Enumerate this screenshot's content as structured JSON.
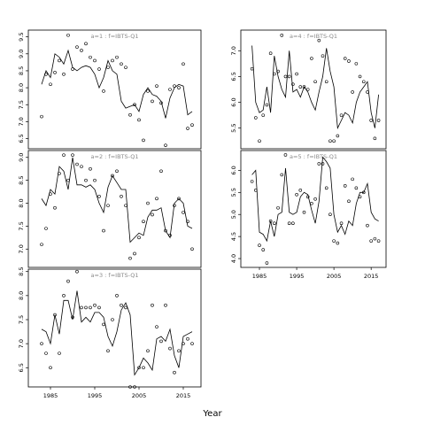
{
  "figure": {
    "xlabel": "Year"
  },
  "chart_data": [
    {
      "type": "line",
      "title": "a=1 : f=IBTS-Q1",
      "xlim": [
        1980,
        2019
      ],
      "ylim": [
        6.2,
        9.7
      ],
      "xticks": [],
      "yticks": [
        6.5,
        7.0,
        7.5,
        8.0,
        8.5,
        9.0,
        9.5
      ],
      "series": [
        {
          "kind": "fitted-line",
          "x": [
            1983,
            1984,
            1985,
            1986,
            1987,
            1988,
            1989,
            1990,
            1991,
            1992,
            1993,
            1994,
            1995,
            1996,
            1997,
            1998,
            1999,
            2000,
            2001,
            2002,
            2003,
            2004,
            2005,
            2006,
            2007,
            2008,
            2009,
            2010,
            2011,
            2012,
            2013,
            2014,
            2015,
            2016,
            2017
          ],
          "y": [
            8.1,
            8.5,
            8.3,
            9.0,
            8.9,
            8.7,
            9.1,
            8.6,
            8.5,
            8.6,
            8.65,
            8.6,
            8.4,
            8.0,
            8.3,
            8.8,
            8.5,
            8.4,
            7.6,
            7.4,
            7.45,
            7.5,
            7.3,
            7.8,
            8.0,
            7.8,
            7.75,
            7.6,
            7.1,
            7.7,
            8.0,
            8.1,
            8.05,
            7.2,
            7.3
          ]
        },
        {
          "kind": "observations",
          "x": [
            1983,
            1984,
            1985,
            1986,
            1987,
            1988,
            1989,
            1990,
            1991,
            1992,
            1993,
            1994,
            1995,
            1996,
            1997,
            1998,
            1999,
            2000,
            2001,
            2002,
            2003,
            2004,
            2005,
            2006,
            2007,
            2008,
            2009,
            2010,
            2011,
            2012,
            2013,
            2014,
            2015,
            2016,
            2017
          ],
          "y": [
            7.15,
            8.4,
            8.1,
            8.45,
            8.8,
            8.4,
            9.55,
            8.55,
            9.2,
            9.1,
            9.3,
            8.9,
            8.8,
            8.55,
            7.9,
            8.6,
            8.8,
            8.9,
            8.7,
            8.6,
            7.2,
            7.5,
            7.05,
            6.45,
            7.9,
            7.6,
            8.05,
            7.55,
            6.3,
            7.95,
            8.05,
            8.0,
            8.7,
            6.8,
            6.9
          ]
        }
      ]
    },
    {
      "type": "line",
      "title": "a=2 : f=IBTS-Q1",
      "xlim": [
        1980,
        2019
      ],
      "ylim": [
        6.6,
        9.15
      ],
      "xticks": [],
      "yticks": [
        7.0,
        7.5,
        8.0,
        8.5,
        9.0
      ],
      "series": [
        {
          "kind": "fitted-line",
          "x": [
            1983,
            1984,
            1985,
            1986,
            1987,
            1988,
            1989,
            1990,
            1991,
            1992,
            1993,
            1994,
            1995,
            1996,
            1997,
            1998,
            1999,
            2000,
            2001,
            2002,
            2003,
            2004,
            2005,
            2006,
            2007,
            2008,
            2009,
            2010,
            2011,
            2012,
            2013,
            2014,
            2015,
            2016,
            2017
          ],
          "y": [
            8.1,
            7.95,
            8.3,
            8.2,
            8.8,
            8.7,
            8.3,
            9.0,
            8.4,
            8.4,
            8.35,
            8.4,
            8.3,
            8.0,
            7.8,
            8.35,
            8.6,
            8.45,
            8.3,
            8.3,
            7.15,
            7.25,
            7.35,
            7.3,
            7.7,
            7.85,
            7.85,
            7.9,
            7.4,
            7.25,
            8.0,
            8.1,
            8.0,
            7.5,
            7.45
          ]
        },
        {
          "kind": "observations",
          "x": [
            1983,
            1984,
            1985,
            1986,
            1987,
            1988,
            1989,
            1990,
            1991,
            1992,
            1993,
            1994,
            1995,
            1996,
            1997,
            1998,
            1999,
            2000,
            2001,
            2002,
            2003,
            2004,
            2005,
            2006,
            2007,
            2008,
            2009,
            2010,
            2011,
            2012,
            2013,
            2014,
            2015,
            2016,
            2017
          ],
          "y": [
            7.1,
            7.45,
            8.2,
            7.9,
            8.65,
            9.05,
            8.5,
            9.05,
            8.85,
            8.8,
            8.5,
            8.75,
            8.5,
            8.15,
            7.4,
            7.95,
            8.6,
            8.7,
            8.15,
            7.95,
            6.8,
            6.9,
            7.25,
            7.6,
            8.0,
            7.75,
            8.1,
            8.7,
            7.4,
            7.3,
            7.95,
            8.1,
            7.8,
            7.6,
            7.0
          ]
        }
      ]
    },
    {
      "type": "line",
      "title": "a=3 : f=IBTS-Q1",
      "xlim": [
        1980,
        2019
      ],
      "ylim": [
        6.1,
        8.55
      ],
      "xticks": [
        1985,
        1995,
        2005,
        2015
      ],
      "yticks": [
        6.5,
        7.0,
        7.5,
        8.0,
        8.5
      ],
      "series": [
        {
          "kind": "fitted-line",
          "x": [
            1983,
            1984,
            1985,
            1986,
            1987,
            1988,
            1989,
            1990,
            1991,
            1992,
            1993,
            1994,
            1995,
            1996,
            1997,
            1998,
            1999,
            2000,
            2001,
            2002,
            2003,
            2004,
            2005,
            2006,
            2007,
            2008,
            2009,
            2010,
            2011,
            2012,
            2013,
            2014,
            2015,
            2016,
            2017
          ],
          "y": [
            7.3,
            7.25,
            7.0,
            7.6,
            7.2,
            7.9,
            7.9,
            7.5,
            8.1,
            7.45,
            7.55,
            7.45,
            7.65,
            7.65,
            7.55,
            7.15,
            6.95,
            7.25,
            7.7,
            7.85,
            7.6,
            6.35,
            6.5,
            6.7,
            6.6,
            6.45,
            7.1,
            7.15,
            7.05,
            7.3,
            6.75,
            6.5,
            7.15,
            7.2,
            7.25
          ]
        },
        {
          "kind": "observations",
          "x": [
            1983,
            1984,
            1985,
            1986,
            1987,
            1988,
            1989,
            1990,
            1991,
            1992,
            1993,
            1994,
            1995,
            1996,
            1997,
            1998,
            1999,
            2000,
            2001,
            2002,
            2003,
            2004,
            2005,
            2006,
            2007,
            2008,
            2009,
            2010,
            2011,
            2012,
            2013,
            2014,
            2015,
            2016,
            2017
          ],
          "y": [
            7.0,
            6.8,
            6.5,
            7.6,
            6.8,
            8.0,
            8.3,
            7.55,
            8.5,
            7.75,
            7.75,
            7.75,
            7.8,
            7.75,
            7.4,
            6.85,
            7.5,
            8.0,
            7.8,
            7.75,
            6.1,
            6.1,
            6.5,
            6.5,
            6.85,
            7.8,
            7.35,
            7.05,
            7.8,
            6.9,
            6.4,
            6.85,
            7.0,
            7.1,
            7.0
          ]
        }
      ]
    },
    {
      "type": "line",
      "title": "a=4 : f=IBTS-Q1",
      "xlim": [
        1980,
        2019
      ],
      "ylim": [
        5.1,
        7.4
      ],
      "xticks": [],
      "yticks": [
        5.5,
        6.0,
        6.5,
        7.0
      ],
      "series": [
        {
          "kind": "fitted-line",
          "x": [
            1983,
            1984,
            1985,
            1986,
            1987,
            1988,
            1989,
            1990,
            1991,
            1992,
            1993,
            1994,
            1995,
            1996,
            1997,
            1998,
            1999,
            2000,
            2001,
            2002,
            2003,
            2004,
            2005,
            2006,
            2007,
            2008,
            2009,
            2010,
            2011,
            2012,
            2013,
            2014,
            2015,
            2016,
            2017
          ],
          "y": [
            7.1,
            6.0,
            5.8,
            5.85,
            6.3,
            5.8,
            6.9,
            6.5,
            6.25,
            6.1,
            7.0,
            6.2,
            6.25,
            6.1,
            6.3,
            6.2,
            6.0,
            5.85,
            6.2,
            6.5,
            7.05,
            6.6,
            6.3,
            5.5,
            5.65,
            5.8,
            5.75,
            5.6,
            6.0,
            6.2,
            6.3,
            6.4,
            5.8,
            5.5,
            6.15
          ]
        },
        {
          "kind": "observations",
          "x": [
            1983,
            1984,
            1985,
            1986,
            1987,
            1988,
            1989,
            1990,
            1991,
            1992,
            1993,
            1994,
            1995,
            1996,
            1997,
            1998,
            1999,
            2000,
            2001,
            2002,
            2003,
            2004,
            2005,
            2006,
            2007,
            2008,
            2009,
            2010,
            2011,
            2012,
            2013,
            2014,
            2015,
            2016,
            2017
          ],
          "y": [
            6.65,
            5.7,
            5.25,
            5.75,
            5.95,
            6.95,
            6.55,
            6.6,
            7.3,
            6.5,
            6.5,
            6.35,
            6.55,
            6.3,
            6.3,
            6.25,
            6.85,
            6.4,
            7.2,
            6.9,
            6.4,
            5.25,
            5.25,
            5.35,
            5.75,
            6.85,
            6.8,
            6.2,
            6.75,
            6.5,
            6.4,
            6.2,
            5.65,
            5.3,
            5.65
          ]
        }
      ]
    },
    {
      "type": "line",
      "title": "a=5 : f=IBTS-Q1",
      "xlim": [
        1980,
        2019
      ],
      "ylim": [
        3.8,
        6.45
      ],
      "xticks": [
        1985,
        1995,
        2005,
        2015
      ],
      "yticks": [
        4.0,
        4.5,
        5.0,
        5.5,
        6.0
      ],
      "series": [
        {
          "kind": "fitted-line",
          "x": [
            1983,
            1984,
            1985,
            1986,
            1987,
            1988,
            1989,
            1990,
            1991,
            1992,
            1993,
            1994,
            1995,
            1996,
            1997,
            1998,
            1999,
            2000,
            2001,
            2002,
            2003,
            2004,
            2005,
            2006,
            2007,
            2008,
            2009,
            2010,
            2011,
            2012,
            2013,
            2014,
            2015,
            2016,
            2017
          ],
          "y": [
            5.9,
            6.0,
            4.6,
            4.55,
            4.4,
            4.85,
            4.5,
            5.0,
            5.05,
            6.05,
            5.05,
            5.0,
            5.05,
            5.4,
            5.5,
            5.45,
            5.1,
            4.8,
            5.3,
            6.3,
            6.2,
            6.05,
            5.0,
            4.6,
            4.75,
            4.55,
            4.85,
            4.75,
            5.25,
            5.5,
            5.5,
            5.7,
            5.05,
            4.9,
            4.85
          ]
        },
        {
          "kind": "observations",
          "x": [
            1983,
            1984,
            1985,
            1986,
            1987,
            1988,
            1989,
            1990,
            1991,
            1992,
            1993,
            1994,
            1995,
            1996,
            1997,
            1998,
            1999,
            2000,
            2001,
            2002,
            2003,
            2004,
            2005,
            2006,
            2007,
            2008,
            2009,
            2010,
            2011,
            2012,
            2013,
            2014,
            2015,
            2016,
            2017
          ],
          "y": [
            5.75,
            5.55,
            4.3,
            4.2,
            3.9,
            4.85,
            4.8,
            5.15,
            5.9,
            6.35,
            4.8,
            4.8,
            5.45,
            5.55,
            5.05,
            5.4,
            5.25,
            5.35,
            6.15,
            6.15,
            5.6,
            5.0,
            4.4,
            4.35,
            4.8,
            5.65,
            5.3,
            5.8,
            5.6,
            5.4,
            5.5,
            4.75,
            4.4,
            4.45,
            4.4
          ]
        }
      ]
    }
  ]
}
